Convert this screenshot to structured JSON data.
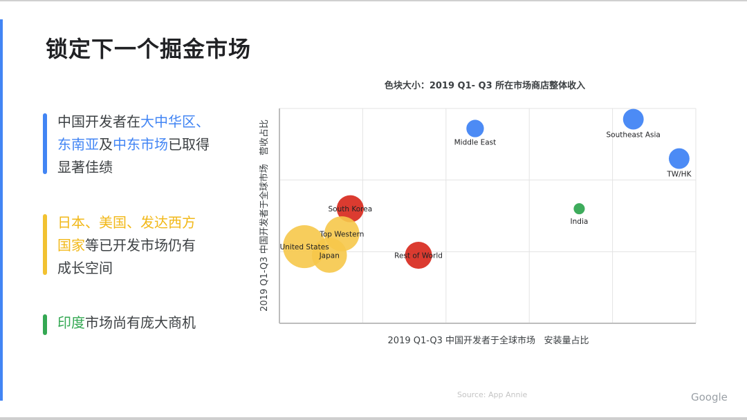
{
  "slide": {
    "title": "锁定下一个掘金市场",
    "source": "Source: App Annie",
    "logo": "Google"
  },
  "bullets": [
    {
      "lines": [
        [
          {
            "t": "中国开发者在",
            "c": ""
          },
          {
            "t": "大中华区、",
            "c": "blue"
          }
        ],
        [
          {
            "t": "东南亚",
            "c": "blue"
          },
          {
            "t": "及",
            "c": ""
          },
          {
            "t": "中东市场",
            "c": "blue"
          },
          {
            "t": "已取得",
            "c": ""
          }
        ],
        [
          {
            "t": "显著佳绩",
            "c": ""
          }
        ]
      ]
    },
    {
      "lines": [
        [
          {
            "t": "日本、美国、发达西方",
            "c": "yellow"
          }
        ],
        [
          {
            "t": "国家",
            "c": "yellow"
          },
          {
            "t": "等已开发市场仍有",
            "c": ""
          }
        ],
        [
          {
            "t": "成长空间",
            "c": ""
          }
        ]
      ]
    },
    {
      "lines": [
        [
          {
            "t": "印度",
            "c": "green"
          },
          {
            "t": "市场尚有庞大商机",
            "c": ""
          }
        ]
      ]
    }
  ],
  "colors": {
    "blue": "#4285f4",
    "red": "#d93025",
    "yellow": "#f6c84a",
    "green": "#34a853",
    "grid": "#e3e3e3",
    "axis": "#bdbdbd"
  },
  "chart_data": {
    "type": "scatter",
    "title": "色块大小：2019 Q1- Q3 所在市场商店整体收入",
    "xlabel": "2019 Q1-Q3 中国开发者于全球市场   安装量占比",
    "ylabel": "2019 Q1-Q3 中国开发者于全球市场   营收占比",
    "xlim": [
      0,
      5
    ],
    "ylim": [
      0,
      3
    ],
    "grid": true,
    "tick_labels": false,
    "points": [
      {
        "label": "Middle East",
        "x": 2.35,
        "y": 2.72,
        "size": 1.1,
        "color": "blue"
      },
      {
        "label": "Southeast Asia",
        "x": 4.25,
        "y": 2.85,
        "size": 1.3,
        "color": "blue"
      },
      {
        "label": "TW/HK",
        "x": 4.8,
        "y": 2.3,
        "size": 1.3,
        "color": "blue"
      },
      {
        "label": "India",
        "x": 3.6,
        "y": 1.6,
        "size": 0.7,
        "color": "green"
      },
      {
        "label": "South Korea",
        "x": 0.85,
        "y": 1.6,
        "size": 1.7,
        "color": "red"
      },
      {
        "label": "Top Western",
        "x": 0.75,
        "y": 1.25,
        "size": 2.2,
        "color": "yellow"
      },
      {
        "label": "United States",
        "x": 0.3,
        "y": 1.07,
        "size": 2.7,
        "color": "yellow"
      },
      {
        "label": "Japan",
        "x": 0.6,
        "y": 0.95,
        "size": 2.2,
        "color": "yellow"
      },
      {
        "label": "Rest of World",
        "x": 1.67,
        "y": 0.95,
        "size": 1.7,
        "color": "red"
      }
    ]
  }
}
